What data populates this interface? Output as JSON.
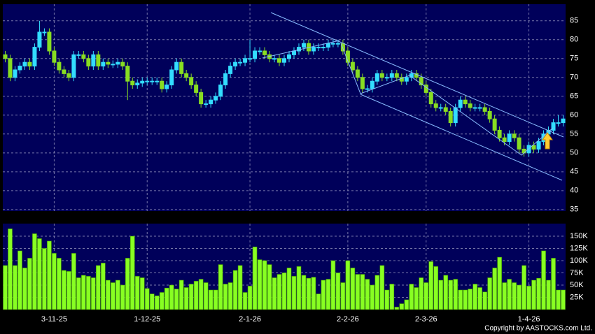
{
  "chart_data": [
    {
      "type": "candlestick",
      "ylim": [
        34.6,
        89.4
      ],
      "yticks": [
        35,
        40,
        45,
        50,
        55,
        60,
        65,
        70,
        75,
        80,
        85
      ],
      "grid": true,
      "up_color": "#33ddff",
      "down_color": "#88dd22",
      "open": [
        76,
        75,
        70,
        72,
        73,
        74,
        73,
        78,
        82,
        82,
        77,
        74,
        72,
        71,
        70,
        76,
        76,
        75,
        73,
        76,
        73,
        74,
        73.5,
        73.5,
        74,
        73,
        69,
        68,
        68.5,
        69,
        69,
        69,
        69,
        67,
        68,
        72,
        74,
        71,
        70,
        68,
        66,
        63,
        63,
        64,
        65,
        68,
        71,
        73,
        74,
        74,
        75,
        75,
        77,
        77,
        76,
        75,
        75,
        74,
        75,
        76,
        77,
        78,
        79,
        77,
        78,
        78,
        78,
        79,
        79,
        79,
        77,
        74,
        72,
        70,
        67,
        67,
        69,
        71,
        70,
        70,
        71,
        70,
        69,
        70,
        71,
        70,
        68,
        66,
        63,
        62,
        62,
        61,
        58,
        62,
        64,
        63,
        62,
        62,
        62,
        61,
        59,
        56,
        54,
        53,
        55,
        54,
        51,
        50,
        52,
        51,
        53,
        55,
        56,
        58,
        58
      ],
      "high": [
        77,
        76,
        73,
        74,
        75,
        75,
        79,
        85,
        83,
        83,
        78,
        75,
        73,
        72,
        77,
        77,
        77,
        76,
        77,
        77,
        75,
        75,
        74.5,
        75,
        75,
        74,
        70,
        69.5,
        70,
        70,
        70,
        70,
        70,
        69,
        73,
        75,
        75,
        72,
        71,
        69,
        67,
        64,
        65,
        66,
        69,
        72,
        74,
        75,
        75,
        76,
        80,
        78,
        78,
        78,
        77,
        76,
        76,
        76,
        77,
        78,
        79,
        80,
        80,
        79,
        79,
        79,
        80,
        80,
        80,
        80,
        78,
        75,
        73,
        71,
        68,
        70,
        72,
        72,
        71,
        72,
        72,
        71,
        71,
        72,
        72,
        71,
        69,
        67,
        64,
        63,
        63,
        62,
        63,
        65,
        65,
        64,
        63,
        63,
        63,
        62,
        60,
        57,
        55,
        56,
        56,
        55,
        52,
        53,
        53,
        54,
        56,
        57,
        59,
        60,
        60
      ],
      "low": [
        74,
        69,
        69,
        71,
        72,
        72,
        72,
        77,
        81,
        76,
        73,
        71,
        70,
        69,
        69,
        75,
        74,
        72,
        72,
        72,
        72,
        72.5,
        72.5,
        72.5,
        72,
        64,
        67,
        67,
        67.5,
        68,
        68,
        68,
        66,
        66,
        67,
        71,
        70,
        69,
        67,
        65,
        62,
        62,
        62,
        63,
        64,
        67,
        70,
        72,
        73,
        73,
        74,
        74,
        76,
        75,
        74,
        74,
        73,
        73,
        74,
        75,
        76,
        77,
        76,
        76,
        77,
        77,
        77,
        78,
        78,
        76,
        73,
        71,
        69,
        66,
        66,
        66,
        68,
        69,
        69,
        69,
        69,
        68,
        68,
        69,
        69,
        67,
        65,
        62,
        61,
        61,
        60,
        57,
        57,
        61,
        62,
        61,
        61,
        61,
        60,
        58,
        55,
        53,
        52,
        52,
        53,
        50,
        49,
        49,
        50,
        50,
        52,
        54,
        55,
        57,
        57
      ],
      "close": [
        75,
        70,
        72,
        73,
        74,
        73,
        78,
        82,
        82,
        77,
        74,
        72,
        71,
        70,
        76,
        76,
        75,
        73,
        76,
        73,
        74,
        73.5,
        73.5,
        74,
        73,
        69,
        68,
        68.5,
        69,
        69,
        69,
        69,
        67,
        68,
        72,
        74,
        71,
        70,
        68,
        66,
        63,
        63,
        64,
        65,
        68,
        71,
        73,
        74,
        74,
        75,
        75,
        77,
        77,
        76,
        75,
        75,
        74,
        75,
        76,
        77,
        78,
        79,
        77,
        78,
        78,
        78,
        79,
        79,
        79,
        77,
        74,
        72,
        70,
        67,
        67,
        69,
        71,
        70,
        70,
        71,
        70,
        69,
        70,
        71,
        70,
        68,
        66,
        63,
        62,
        62,
        61,
        58,
        62,
        64,
        63,
        62,
        62,
        62,
        61,
        59,
        56,
        54,
        53,
        55,
        54,
        51,
        50,
        52,
        51,
        53,
        55,
        56,
        58,
        58,
        59
      ]
    },
    {
      "type": "bar",
      "color": "#88ff22",
      "ylim": [
        0,
        175700
      ],
      "grid": true,
      "yticks": [
        {
          "value": 25000,
          "label": "25K"
        },
        {
          "value": 50000,
          "label": "50K"
        },
        {
          "value": 75000,
          "label": "75K"
        },
        {
          "value": 100000,
          "label": "100K"
        },
        {
          "value": 125000,
          "label": "125K"
        },
        {
          "value": 150000,
          "label": "150K"
        }
      ],
      "categories": [
        null,
        null,
        null,
        null,
        null,
        null,
        null,
        null,
        null,
        null,
        "3-11-25",
        null,
        null,
        null,
        null,
        null,
        null,
        null,
        null,
        null,
        null,
        null,
        null,
        null,
        null,
        null,
        null,
        null,
        null,
        "1-12-25",
        null,
        null,
        null,
        null,
        null,
        null,
        null,
        null,
        null,
        null,
        null,
        null,
        null,
        null,
        null,
        null,
        null,
        null,
        null,
        null,
        "2-1-26",
        null,
        null,
        null,
        null,
        null,
        null,
        null,
        null,
        null,
        null,
        null,
        null,
        null,
        null,
        null,
        null,
        null,
        null,
        null,
        "2-2-26",
        null,
        null,
        null,
        null,
        null,
        null,
        null,
        null,
        null,
        null,
        null,
        null,
        null,
        null,
        null,
        "2-3-26",
        null,
        null,
        null,
        null,
        null,
        null,
        null,
        null,
        null,
        null,
        null,
        null,
        null,
        null,
        null,
        null,
        null,
        null,
        null,
        null,
        "1-4-26",
        null,
        null,
        null,
        null,
        null,
        null,
        null
      ],
      "values": [
        90000,
        165000,
        90000,
        120000,
        85000,
        105000,
        155000,
        145000,
        125000,
        140000,
        115000,
        105000,
        80000,
        78000,
        115000,
        65000,
        70000,
        68000,
        65000,
        90000,
        95000,
        60000,
        55000,
        60000,
        50000,
        105000,
        150000,
        68000,
        65000,
        43000,
        32000,
        28000,
        35000,
        44000,
        50000,
        42000,
        60000,
        45000,
        52000,
        58000,
        62000,
        55000,
        40000,
        40000,
        92000,
        52000,
        55000,
        80000,
        90000,
        35000,
        48000,
        128000,
        102000,
        100000,
        92000,
        65000,
        72000,
        75000,
        85000,
        68000,
        88000,
        70000,
        64000,
        66000,
        32000,
        60000,
        62000,
        100000,
        75000,
        55000,
        100000,
        85000,
        72000,
        72000,
        62000,
        50000,
        70000,
        90000,
        40000,
        52000,
        5000,
        12000,
        20000,
        52000,
        45000,
        65000,
        55000,
        98000,
        88000,
        60000,
        70000,
        60000,
        62000,
        40000,
        40000,
        42000,
        52000,
        45000,
        36000,
        65000,
        85000,
        107000,
        55000,
        62000,
        55000,
        50000,
        90000,
        48000,
        60000,
        64000,
        120000,
        60000,
        105000,
        40000,
        40000
      ]
    }
  ],
  "copyright": "Copyright by AASTOCKS.com Ltd."
}
